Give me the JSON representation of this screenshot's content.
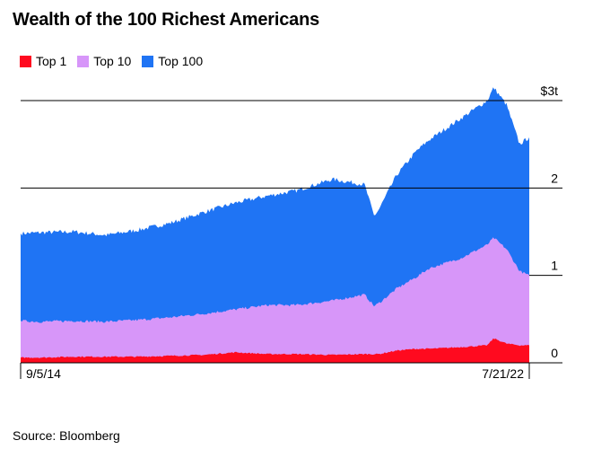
{
  "chart_data": {
    "type": "area",
    "title": "Wealth of the 100 Richest Americans",
    "source": "Source: Bloomberg",
    "xlabel": "",
    "ylabel": "",
    "ylim": [
      0,
      3
    ],
    "yticks": [
      {
        "value": 0,
        "label": "0"
      },
      {
        "value": 1,
        "label": "1"
      },
      {
        "value": 2,
        "label": "2"
      },
      {
        "value": 3,
        "label": "$3t"
      }
    ],
    "x_start_label": "9/5/14",
    "x_end_label": "7/21/22",
    "x": [
      2014.68,
      2015.0,
      2015.5,
      2016.0,
      2016.5,
      2017.0,
      2017.5,
      2018.0,
      2018.5,
      2018.95,
      2019.5,
      2020.0,
      2020.15,
      2020.22,
      2020.5,
      2020.8,
      2021.0,
      2021.5,
      2021.9,
      2022.0,
      2022.2,
      2022.4,
      2022.55
    ],
    "series": [
      {
        "name": "Top 1",
        "color": "#ff0a1f",
        "values": [
          0.06,
          0.06,
          0.07,
          0.07,
          0.07,
          0.08,
          0.09,
          0.12,
          0.1,
          0.1,
          0.09,
          0.1,
          0.1,
          0.1,
          0.14,
          0.16,
          0.16,
          0.18,
          0.2,
          0.28,
          0.22,
          0.2,
          0.2
        ]
      },
      {
        "name": "Top 10",
        "color": "#d796f9",
        "values": [
          0.48,
          0.47,
          0.48,
          0.47,
          0.49,
          0.52,
          0.56,
          0.61,
          0.66,
          0.66,
          0.71,
          0.78,
          0.65,
          0.68,
          0.85,
          0.98,
          1.08,
          1.2,
          1.35,
          1.43,
          1.3,
          1.05,
          1.0
        ]
      },
      {
        "name": "Top 100",
        "color": "#1f74f4",
        "values": [
          1.48,
          1.49,
          1.5,
          1.46,
          1.52,
          1.6,
          1.72,
          1.83,
          1.91,
          1.97,
          2.1,
          2.04,
          1.68,
          1.75,
          2.15,
          2.42,
          2.55,
          2.8,
          3.0,
          3.15,
          2.95,
          2.5,
          2.58
        ]
      }
    ]
  }
}
